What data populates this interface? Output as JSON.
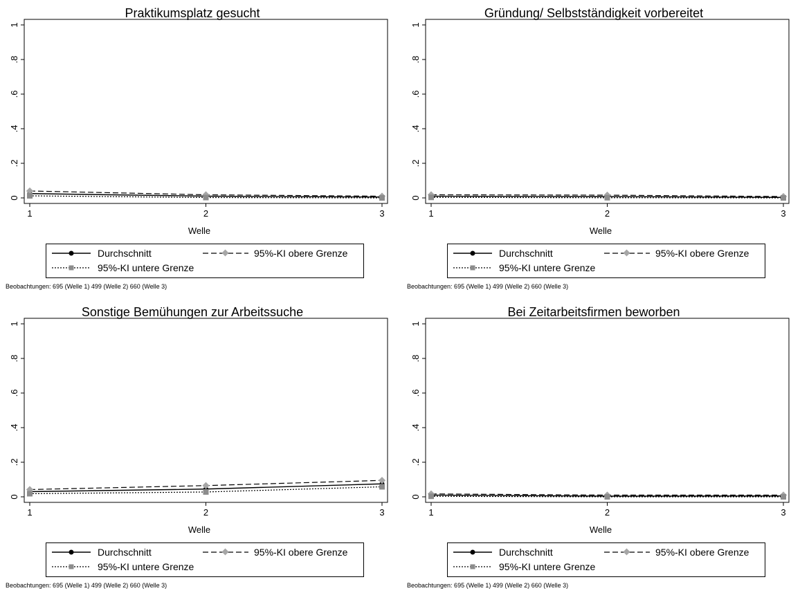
{
  "shared": {
    "xlabel": "Welle",
    "x": [
      1,
      2,
      3
    ],
    "ylim": [
      0,
      1
    ],
    "yticks": [
      "0",
      ".2",
      ".4",
      ".6",
      ".8",
      "1"
    ],
    "xticks": [
      "1",
      "2",
      "3"
    ],
    "legend": {
      "mean": "Durchschnitt",
      "upper": "95%-KI obere Grenze",
      "lower": "95%-KI untere Grenze"
    },
    "footnote": "Beobachtungen: 695 (Welle 1) 499 (Welle 2) 660 (Welle 3)",
    "colors": {
      "line": "#000000",
      "marker_upper": "#a6a6a6",
      "marker_lower": "#8c8c8c",
      "frame": "#000000"
    }
  },
  "chart_data": [
    {
      "type": "line",
      "title": "Praktikumsplatz gesucht",
      "xlabel": "Welle",
      "ylim": [
        0,
        1
      ],
      "x": [
        1,
        2,
        3
      ],
      "series": [
        {
          "name": "Durchschnitt",
          "values": [
            0.025,
            0.01,
            0.005
          ]
        },
        {
          "name": "95%-KI obere Grenze",
          "values": [
            0.04,
            0.018,
            0.01
          ]
        },
        {
          "name": "95%-KI untere Grenze",
          "values": [
            0.012,
            0.002,
            0.0
          ]
        }
      ]
    },
    {
      "type": "line",
      "title": "Gründung/ Selbstständigkeit vorbereitet",
      "xlabel": "Welle",
      "ylim": [
        0,
        1
      ],
      "x": [
        1,
        2,
        3
      ],
      "series": [
        {
          "name": "Durchschnitt",
          "values": [
            0.01,
            0.008,
            0.003
          ]
        },
        {
          "name": "95%-KI obere Grenze",
          "values": [
            0.018,
            0.016,
            0.008
          ]
        },
        {
          "name": "95%-KI untere Grenze",
          "values": [
            0.003,
            0.001,
            0.0
          ]
        }
      ]
    },
    {
      "type": "line",
      "title": "Sonstige Bemühungen zur Arbeitssuche",
      "xlabel": "Welle",
      "ylim": [
        0,
        1
      ],
      "x": [
        1,
        2,
        3
      ],
      "series": [
        {
          "name": "Durchschnitt",
          "values": [
            0.03,
            0.045,
            0.075
          ]
        },
        {
          "name": "95%-KI obere Grenze",
          "values": [
            0.042,
            0.065,
            0.095
          ]
        },
        {
          "name": "95%-KI untere Grenze",
          "values": [
            0.018,
            0.028,
            0.058
          ]
        }
      ]
    },
    {
      "type": "line",
      "title": "Bei Zeitarbeitsfirmen beworben",
      "xlabel": "Welle",
      "ylim": [
        0,
        1
      ],
      "x": [
        1,
        2,
        3
      ],
      "series": [
        {
          "name": "Durchschnitt",
          "values": [
            0.01,
            0.004,
            0.005
          ]
        },
        {
          "name": "95%-KI obere Grenze",
          "values": [
            0.017,
            0.01,
            0.01
          ]
        },
        {
          "name": "95%-KI untere Grenze",
          "values": [
            0.003,
            0.0,
            0.0
          ]
        }
      ]
    }
  ]
}
